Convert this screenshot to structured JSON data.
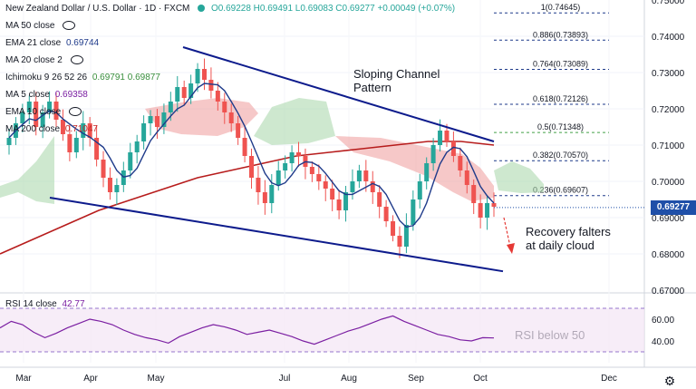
{
  "header": {
    "symbol": "New Zealand Dollar / U.S. Dollar · 1D · FXCM",
    "ohlc": "O0.69228 H0.69491 L0.69083 C0.69277 +0.00049 (+0.07%)",
    "up_color": "#26a69a"
  },
  "indicators": [
    {
      "label": "MA 50 close",
      "value": "",
      "color": "#2962ff"
    },
    {
      "label": "EMA 21 close",
      "value": "0.69744",
      "color": "#1e3a8a"
    },
    {
      "label": "MA 20 close 2",
      "value": "",
      "color": "#f57c00"
    },
    {
      "label": "Ichimoku 9 26 52 26",
      "value": "0.69791 0.69877",
      "color": "#388e3c"
    },
    {
      "label": "MA 5 close",
      "value": "0.69358",
      "color": "#7b1fa2"
    },
    {
      "label": "EMA 10 close",
      "value": "",
      "color": "#f57c00"
    },
    {
      "label": "MA 200 close",
      "value": "0.71047",
      "color": "#c62828"
    }
  ],
  "price_axis": {
    "ticks": [
      "0.75000",
      "0.74000",
      "0.73000",
      "0.72000",
      "0.71000",
      "0.70000",
      "0.69000",
      "0.68000",
      "0.67000"
    ]
  },
  "last_price": {
    "label": "0.69277",
    "color": "#1f4fa8"
  },
  "rsi": {
    "label": "RSI 14 close",
    "value": "42.77",
    "ticks": [
      "60.00",
      "40.00"
    ],
    "color": "#7b1fa2"
  },
  "time_axis": [
    "Mar",
    "Apr",
    "May",
    "Jul",
    "Aug",
    "Sep",
    "Oct",
    "Dec"
  ],
  "annotations": {
    "channel": [
      "Sloping Channel",
      "Pattern"
    ],
    "recovery": [
      "Recovery falters",
      "at daily cloud"
    ],
    "rsi_note": "RSI below 50"
  },
  "fib_levels": [
    {
      "level": "1(0.74645)",
      "price": 0.74645
    },
    {
      "level": "0.886(0.73893)",
      "price": 0.73893
    },
    {
      "level": "0.764(0.73089)",
      "price": 0.73089
    },
    {
      "level": "0.618(0.72126)",
      "price": 0.72126
    },
    {
      "level": "0.5(0.71348)",
      "price": 0.71348
    },
    {
      "level": "0.382(0.70570)",
      "price": 0.7057
    },
    {
      "level": "0.236(0.69607)",
      "price": 0.69607
    }
  ],
  "chart_data": {
    "type": "candlestick",
    "title": "New Zealand Dollar / U.S. Dollar · 1D · FXCM",
    "ylim": [
      0.67,
      0.75
    ],
    "x_labels": [
      "Mar",
      "Apr",
      "May",
      "Jul",
      "Aug",
      "Sep",
      "Oct",
      "Dec"
    ],
    "close_path": [
      0.712,
      0.716,
      0.719,
      0.722,
      0.715,
      0.719,
      0.722,
      0.717,
      0.713,
      0.708,
      0.712,
      0.716,
      0.712,
      0.706,
      0.701,
      0.697,
      0.699,
      0.703,
      0.708,
      0.711,
      0.716,
      0.718,
      0.715,
      0.719,
      0.722,
      0.726,
      0.723,
      0.727,
      0.731,
      0.728,
      0.725,
      0.722,
      0.719,
      0.716,
      0.712,
      0.707,
      0.701,
      0.697,
      0.694,
      0.699,
      0.703,
      0.705,
      0.708,
      0.707,
      0.704,
      0.702,
      0.7,
      0.698,
      0.695,
      0.692,
      0.697,
      0.7,
      0.703,
      0.7,
      0.697,
      0.693,
      0.689,
      0.685,
      0.682,
      0.688,
      0.695,
      0.7,
      0.705,
      0.71,
      0.714,
      0.711,
      0.707,
      0.703,
      0.699,
      0.694,
      0.69,
      0.694,
      0.693
    ],
    "ma200": [
      0.68,
      0.684,
      0.688,
      0.692,
      0.695,
      0.698,
      0.701,
      0.703,
      0.705,
      0.707,
      0.708,
      0.709,
      0.71,
      0.711,
      0.711,
      0.71
    ],
    "channel_upper": [
      [
        0.737
      ],
      [
        0.711
      ]
    ],
    "channel_lower": [
      [
        0.697
      ],
      [
        0.675
      ]
    ],
    "cloud_bull": [
      0.712,
      0.718,
      0.717,
      0.71,
      0.708,
      0.702,
      0.699,
      0.702,
      0.706,
      0.704
    ],
    "rsi_series": [
      52,
      58,
      55,
      48,
      43,
      47,
      52,
      56,
      60,
      58,
      55,
      50,
      46,
      43,
      41,
      38,
      44,
      48,
      52,
      55,
      53,
      50,
      46,
      48,
      50,
      47,
      44,
      40,
      37,
      41,
      45,
      49,
      52,
      56,
      60,
      63,
      58,
      54,
      50,
      46,
      44,
      41,
      40,
      43,
      42.77
    ],
    "rsi_ylim": [
      20,
      80
    ]
  }
}
